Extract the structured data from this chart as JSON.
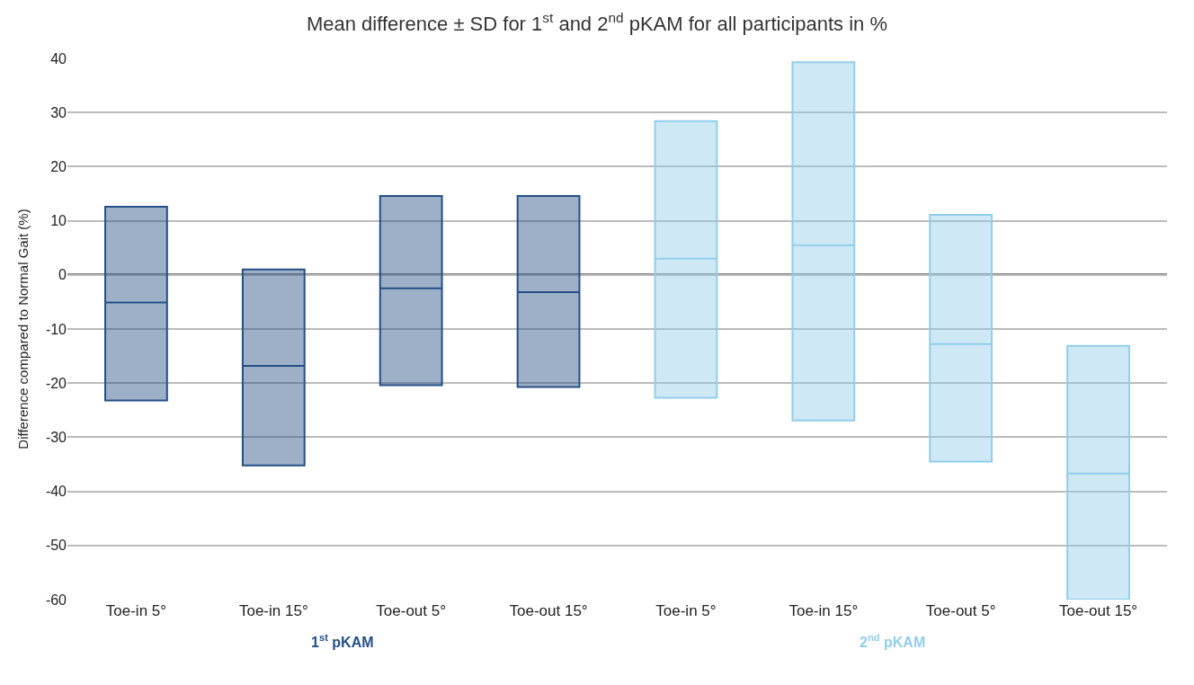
{
  "chart_data": {
    "type": "box",
    "title": "Mean difference ± SD for 1$^{st}$ and 2$^{nd}$ pKAM for all participants in %",
    "ylabel": "Difference compared to Normal Gait (%)",
    "categories": [
      "Toe-in 5°",
      "Toe-in 15°",
      "Toe-out 5°",
      "Toe-out 15°",
      "Toe-in 5°",
      "Toe-in 15°",
      "Toe-out 5°",
      "Toe-out 15°"
    ],
    "series": [
      {
        "name": "1$^{st}$ pKAM",
        "color": "#254f86",
        "boxes": [
          {
            "low": -23.2,
            "q1": -23.2,
            "median": -5.1,
            "q3": 12.6,
            "high": 12.6
          },
          {
            "low": -35.2,
            "q1": -35.2,
            "median": -16.8,
            "q3": 1.0,
            "high": 1.0
          },
          {
            "low": -20.4,
            "q1": -20.4,
            "median": -2.5,
            "q3": 14.6,
            "high": 14.6
          },
          {
            "low": -20.7,
            "q1": -20.7,
            "median": -3.2,
            "q3": 14.6,
            "high": 14.6
          },
          null,
          null,
          null,
          null
        ]
      },
      {
        "name": "2$^{nd}$ pKAM",
        "color": "#92cdea",
        "boxes": [
          null,
          null,
          null,
          null,
          {
            "low": -22.7,
            "q1": -22.7,
            "median": 3.0,
            "q3": 28.4,
            "high": 28.4
          },
          {
            "low": -26.9,
            "q1": -26.9,
            "median": 5.5,
            "q3": 39.3,
            "high": 39.3
          },
          {
            "low": -34.5,
            "q1": -34.5,
            "median": -12.8,
            "q3": 11.1,
            "high": 11.1
          },
          {
            "low": -60.0,
            "q1": -60.0,
            "median": -36.7,
            "q3": -13.1,
            "high": -13.1
          }
        ]
      }
    ],
    "ylim": [
      -60,
      40
    ],
    "yticks": [
      -60,
      -50,
      -40,
      -30,
      -20,
      -10,
      0,
      10,
      20,
      30,
      40
    ],
    "ref_lines": [
      {
        "axis": "y",
        "value": 0,
        "color": "#000000"
      }
    ],
    "grid": "y",
    "legend": false
  }
}
